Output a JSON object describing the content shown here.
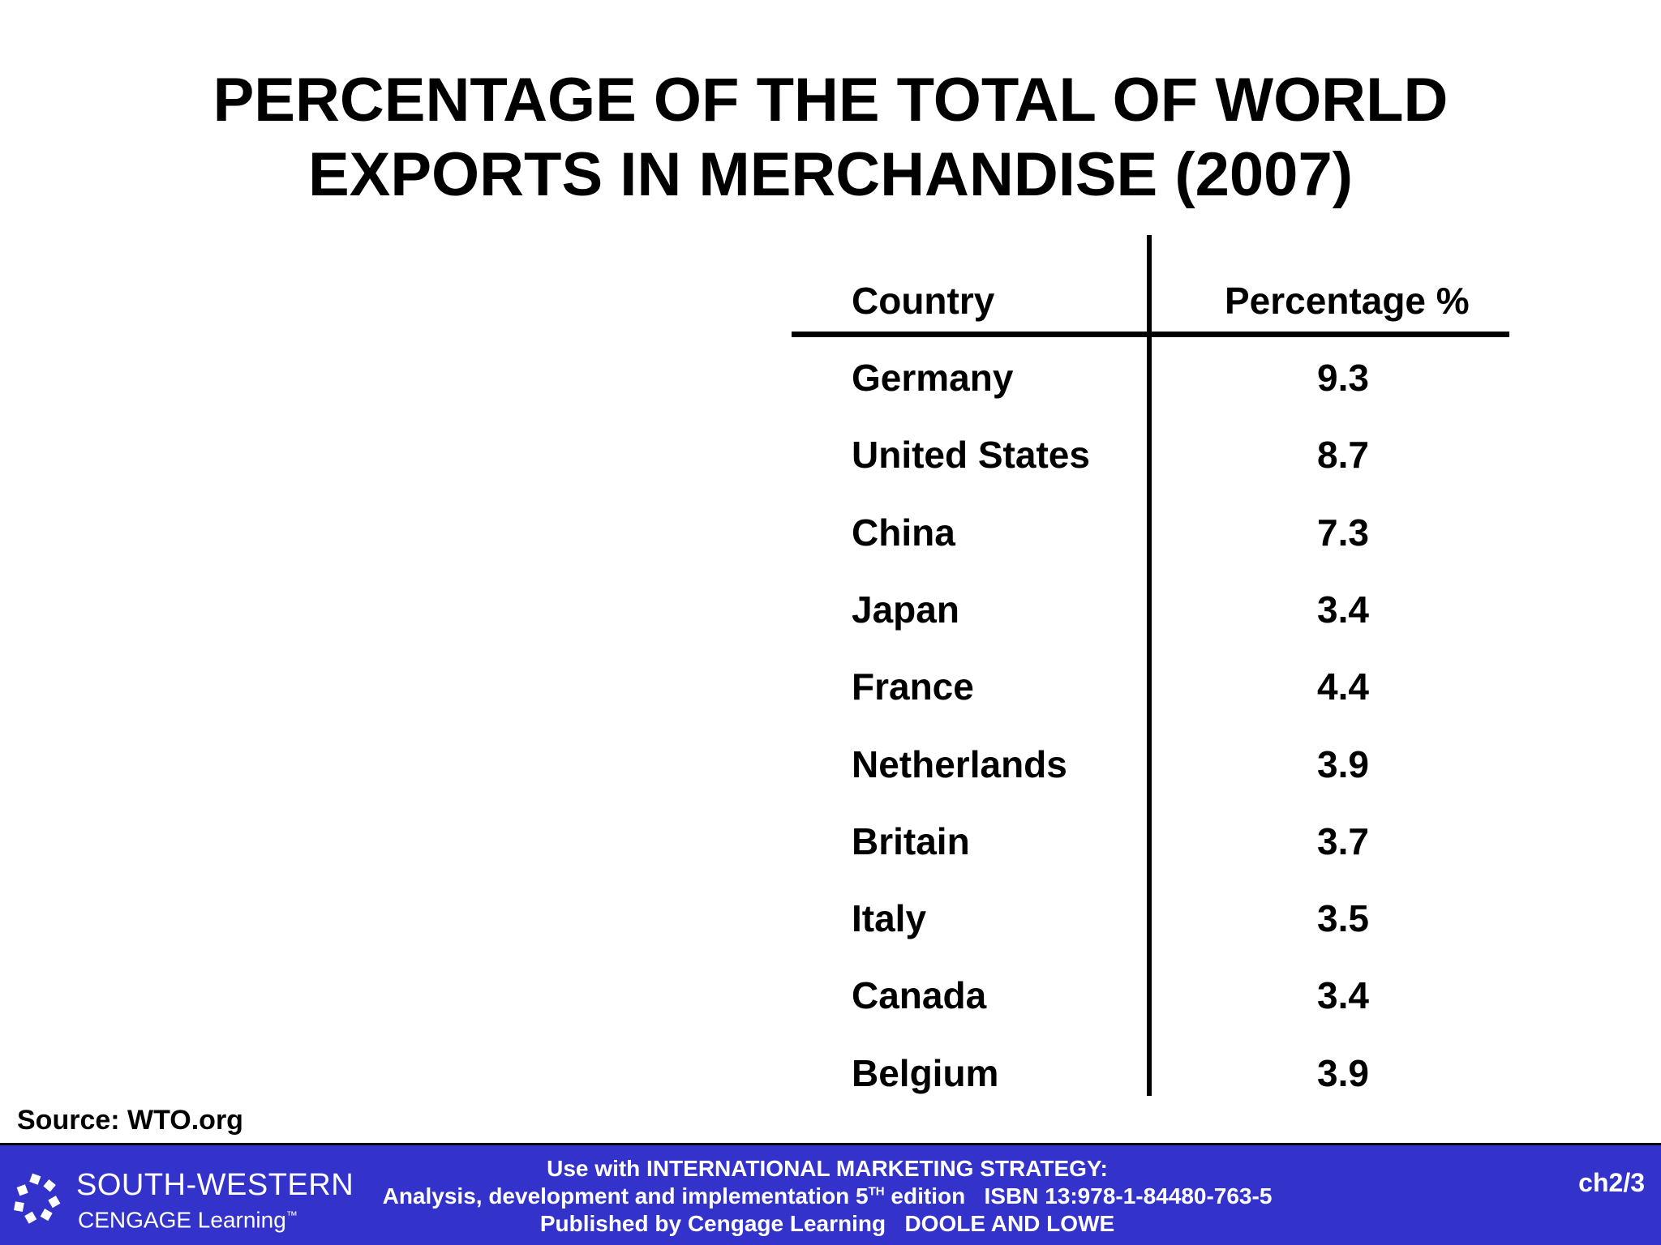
{
  "slide": {
    "title_line1": "PERCENTAGE OF THE TOTAL OF WORLD",
    "title_line2": "EXPORTS IN MERCHANDISE (2007)"
  },
  "table": {
    "headers": {
      "country": "Country",
      "percentage": "Percentage %"
    },
    "rows": [
      {
        "country": "Germany",
        "value": "9.3"
      },
      {
        "country": "United States",
        "value": "8.7"
      },
      {
        "country": "China",
        "value": "7.3"
      },
      {
        "country": "Japan",
        "value": "3.4"
      },
      {
        "country": "France",
        "value": "4.4"
      },
      {
        "country": "Netherlands",
        "value": "3.9"
      },
      {
        "country": "Britain",
        "value": "3.7"
      },
      {
        "country": "Italy",
        "value": "3.5"
      },
      {
        "country": "Canada",
        "value": "3.4"
      },
      {
        "country": "Belgium",
        "value": "3.9"
      }
    ]
  },
  "source": "Source: WTO.org",
  "footer": {
    "logo_line1": "SOUTH-WESTERN",
    "logo_line2": "CENGAGE Learning",
    "line1": "Use with INTERNATIONAL MARKETING STRATEGY:",
    "line2_before_sup": "Analysis, development and implementation 5",
    "line2_sup": "TH",
    "line2_after_sup": " edition   ISBN 13:978-1-84480-763-5",
    "line3": "Published by Cengage Learning   DOOLE AND LOWE",
    "page_ref": "ch2/3",
    "bar_color": "#3333cc"
  }
}
